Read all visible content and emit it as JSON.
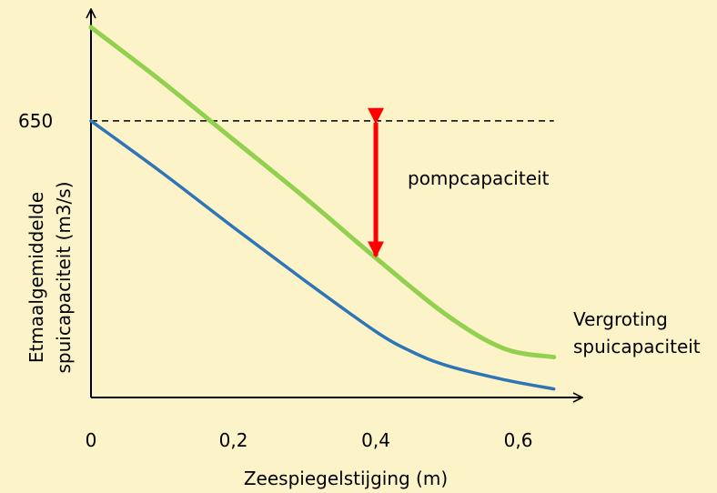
{
  "chart_data": {
    "type": "line",
    "xlabel": "Zeespiegelstijging (m)",
    "ylabel_lines": [
      "Etmaalgemiddelde",
      "spuicapaciteit (m3/s)"
    ],
    "x_ticks": [
      {
        "value": 0,
        "label": "0"
      },
      {
        "value": 0.2,
        "label": "0,2"
      },
      {
        "value": 0.4,
        "label": "0,4"
      },
      {
        "value": 0.6,
        "label": "0,6"
      }
    ],
    "y_ticks": [
      {
        "value": 650,
        "label": "650"
      }
    ],
    "xlim": [
      0,
      0.69
    ],
    "ylim": [
      0,
      870
    ],
    "grid": false,
    "reference_line": {
      "y": 650,
      "style": "dashed",
      "x_range": [
        0,
        0.65
      ]
    },
    "series": [
      {
        "color": "#92d050",
        "x": [
          0,
          0.1,
          0.2,
          0.3,
          0.4,
          0.5,
          0.58,
          0.65
        ],
        "y": [
          870,
          742,
          606,
          470,
          328,
          193,
          115,
          95
        ]
      },
      {
        "color": "#2e75b6",
        "x": [
          0,
          0.1,
          0.2,
          0.3,
          0.4,
          0.45,
          0.5,
          0.58,
          0.65
        ],
        "y": [
          650,
          528,
          400,
          275,
          155,
          108,
          75,
          42,
          20
        ]
      }
    ],
    "annotations": [
      {
        "text": "pompcapaciteit",
        "type": "double-arrow",
        "x": 0.4,
        "y_from": 650,
        "y_to": 328,
        "color": "#ff0000"
      },
      {
        "lines": [
          "Vergroting",
          "spuicapaciteit"
        ],
        "anchor": "green-line-end"
      }
    ]
  }
}
